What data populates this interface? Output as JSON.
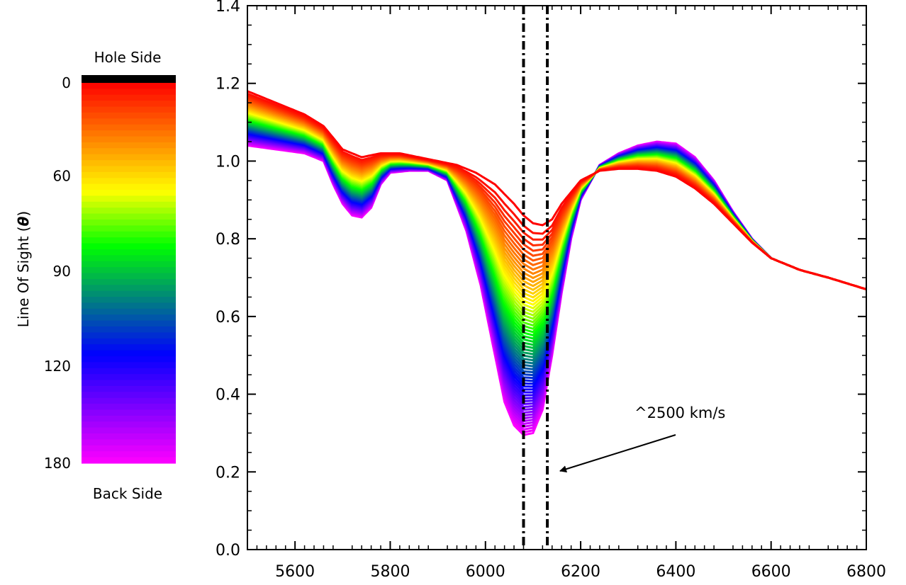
{
  "chart_data": {
    "type": "line",
    "title": "",
    "xlabel": "",
    "ylabel": "",
    "xlim": [
      5500,
      6800
    ],
    "ylim": [
      0.0,
      1.4
    ],
    "x_ticks": [
      5600,
      5800,
      6000,
      6200,
      6400,
      6600,
      6800
    ],
    "y_ticks": [
      0.0,
      0.2,
      0.4,
      0.6,
      0.8,
      1.0,
      1.2,
      1.4
    ],
    "x_tick_labels": [
      "5600",
      "5800",
      "6000",
      "6200",
      "6400",
      "6600",
      "6800"
    ],
    "y_tick_labels": [
      "0.0",
      "0.2",
      "0.4",
      "0.6",
      "0.8",
      "1.0",
      "1.2",
      "1.4"
    ],
    "grid": false,
    "series_count": 61,
    "series_color_by": "line of sight angle from 0 (red) through yellow, green, blue to 180 (magenta)",
    "reference_lines": [
      {
        "x": 6080,
        "style": "dash-dot",
        "color": "#000000"
      },
      {
        "x": 6130,
        "style": "dash-dot",
        "color": "#000000"
      }
    ],
    "profiles": {
      "theta_0": {
        "x": [
          5500,
          5560,
          5620,
          5660,
          5700,
          5740,
          5780,
          5820,
          5860,
          5900,
          5940,
          5980,
          6020,
          6060,
          6080,
          6100,
          6120,
          6140,
          6160,
          6200,
          6240,
          6280,
          6320,
          6360,
          6400,
          6440,
          6480,
          6520,
          6560,
          6600,
          6660,
          6720,
          6800
        ],
        "y": [
          1.18,
          1.15,
          1.12,
          1.09,
          1.03,
          1.01,
          1.02,
          1.02,
          1.01,
          1.0,
          0.99,
          0.97,
          0.94,
          0.89,
          0.86,
          0.84,
          0.835,
          0.85,
          0.89,
          0.95,
          0.975,
          0.98,
          0.98,
          0.975,
          0.96,
          0.93,
          0.89,
          0.84,
          0.79,
          0.75,
          0.72,
          0.7,
          0.67
        ]
      },
      "theta_180": {
        "x": [
          5500,
          5560,
          5620,
          5660,
          5680,
          5700,
          5720,
          5740,
          5760,
          5780,
          5800,
          5840,
          5880,
          5920,
          5960,
          5990,
          6020,
          6040,
          6060,
          6080,
          6100,
          6120,
          6140,
          6160,
          6180,
          6200,
          6240,
          6280,
          6320,
          6360,
          6400,
          6440,
          6480,
          6520,
          6560,
          6600,
          6660,
          6720,
          6800
        ],
        "y": [
          1.04,
          1.03,
          1.02,
          1.0,
          0.94,
          0.89,
          0.86,
          0.855,
          0.88,
          0.94,
          0.97,
          0.975,
          0.975,
          0.95,
          0.82,
          0.68,
          0.5,
          0.38,
          0.32,
          0.295,
          0.3,
          0.36,
          0.5,
          0.66,
          0.8,
          0.9,
          0.99,
          1.02,
          1.04,
          1.05,
          1.045,
          1.01,
          0.95,
          0.87,
          0.8,
          0.75,
          0.72,
          0.7,
          0.67
        ]
      }
    }
  },
  "colorbar": {
    "title_top": "Hole Side",
    "title_bottom": "Back Side",
    "axis_label": "Line Of Sight (θ)",
    "axis_label_main": "Line Of Sight (",
    "axis_label_symbol": "θ",
    "axis_label_close": ")",
    "tick_labels": [
      "0",
      "60",
      "90",
      "120",
      "180"
    ],
    "tick_values": [
      0,
      60,
      90,
      120,
      180
    ],
    "colors": [
      "#ff0000",
      "#ff7f00",
      "#ffff00",
      "#00ff00",
      "#008080",
      "#0000ff",
      "#8000ff",
      "#ff00ff"
    ],
    "top_cap_color": "#000000"
  },
  "annotation": {
    "text": "^2500 km/s"
  }
}
